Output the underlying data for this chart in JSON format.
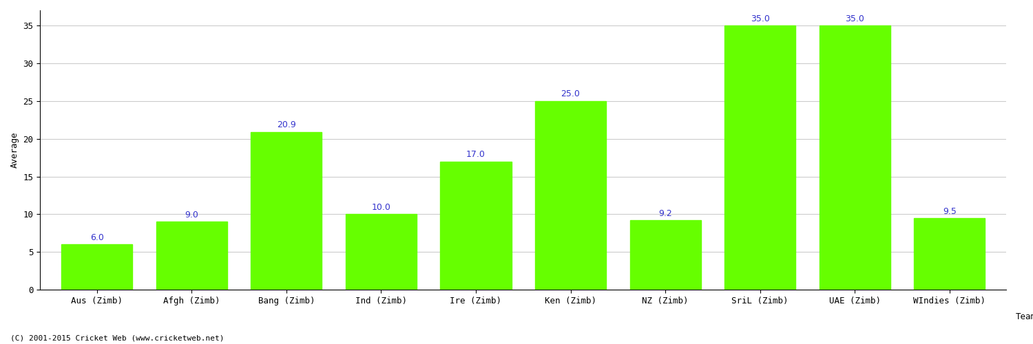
{
  "title": "",
  "xlabel": "Team",
  "ylabel": "Average",
  "categories": [
    "Aus (Zimb)",
    "Afgh (Zimb)",
    "Bang (Zimb)",
    "Ind (Zimb)",
    "Ire (Zimb)",
    "Ken (Zimb)",
    "NZ (Zimb)",
    "SriL (Zimb)",
    "UAE (Zimb)",
    "WIndies (Zimb)"
  ],
  "values": [
    6.0,
    9.0,
    20.9,
    10.0,
    17.0,
    25.0,
    9.2,
    35.0,
    35.0,
    9.5
  ],
  "bar_color": "#66ff00",
  "label_color": "#3333cc",
  "ylim": [
    0,
    37
  ],
  "yticks": [
    0,
    5,
    10,
    15,
    20,
    25,
    30,
    35
  ],
  "background_color": "#ffffff",
  "grid_color": "#cccccc",
  "footer_text": "(C) 2001-2015 Cricket Web (www.cricketweb.net)",
  "label_fontsize": 9,
  "axis_fontsize": 9,
  "title_fontsize": 13,
  "bar_width": 0.75
}
